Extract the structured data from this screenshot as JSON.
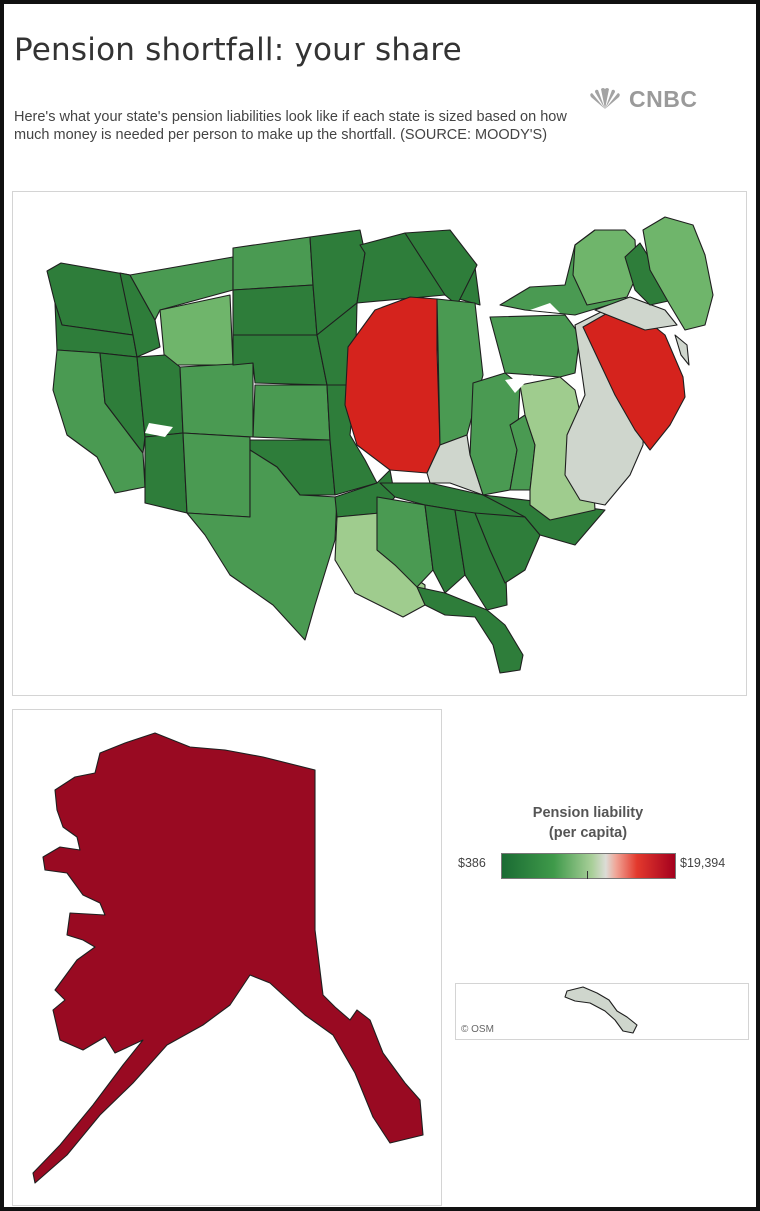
{
  "header": {
    "title": "Pension shortfall: your share",
    "description": "Here's what your state's pension liabilities look like if each state is sized based on how much money is needed per person to make up the shortfall. (SOURCE: MOODY'S)",
    "brand": "CNBC"
  },
  "legend": {
    "title_line1": "Pension liability",
    "title_line2": "(per capita)",
    "min_label": "$386",
    "max_label": "$19,394",
    "colors": [
      "#1a6b33",
      "#3f9a4a",
      "#a9cf99",
      "#dcdcd6",
      "#e3392d",
      "#a4001e"
    ]
  },
  "map": {
    "attribution": "© OSM",
    "colors": {
      "dark_green": "#2e7d3a",
      "mid_green": "#4a9a52",
      "light_green": "#6fb56b",
      "pale_green": "#9fcc8e",
      "gray": "#cfd6cd",
      "red": "#d5231d",
      "crimson": "#990a22"
    }
  }
}
